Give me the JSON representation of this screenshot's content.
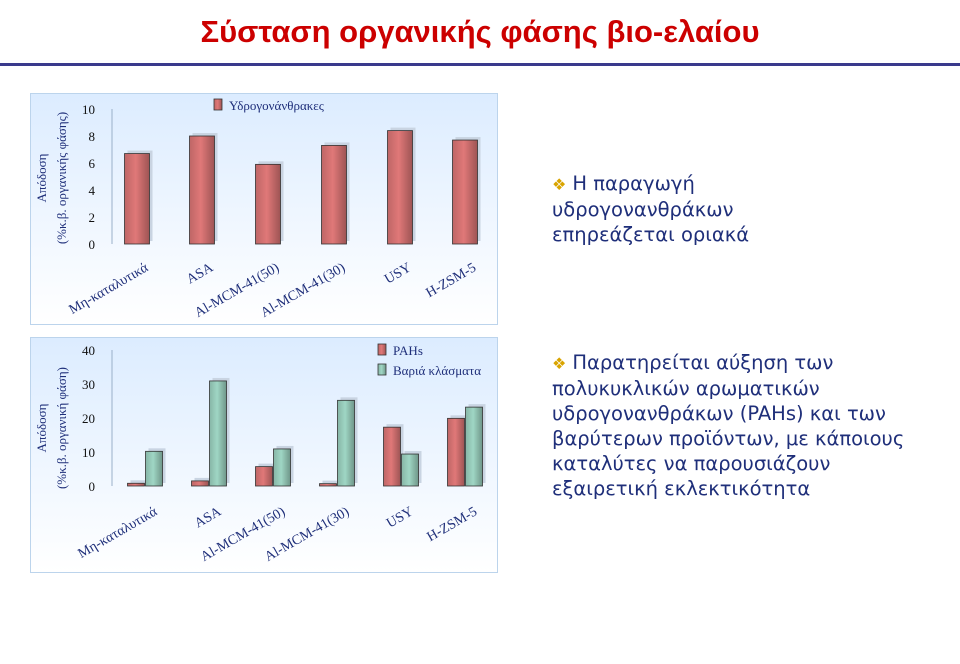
{
  "title": "Σύσταση οργανικής φάσης βιο-ελαίου",
  "bullets": [
    "Η παραγωγή υδρογονανθράκων επηρεάζεται οριακά",
    "Παρατηρείται αύξηση των πολυκυκλικών αρωματικών υδρογονανθράκων (PAHs) και των βαρύτερων προϊόντων, με κάποιους καταλύτες να παρουσιάζουν εξαιρετική εκλεκτικότητα"
  ],
  "chart_data": [
    {
      "type": "bar",
      "categories": [
        "Μη-καταλυτικά",
        "ASA",
        "Al-MCM-41(50)",
        "Al-MCM-41(30)",
        "USY",
        "H-ZSM-5"
      ],
      "series": [
        {
          "name": "Υδρογονάνθρακες",
          "values": [
            6.7,
            8.0,
            5.9,
            7.3,
            8.4,
            7.7
          ],
          "color": "#e07878"
        }
      ],
      "ylabel": [
        "Απόδοση",
        "(%κ.β. οργανικής φάσης)"
      ],
      "yticks": [
        "0",
        "2",
        "4",
        "6",
        "8",
        "10"
      ],
      "ylim": [
        0,
        10
      ],
      "legend_position": "top",
      "grid": false
    },
    {
      "type": "bar",
      "categories": [
        "Μη-καταλυτικά",
        "ASA",
        "Al-MCM-41(50)",
        "Al-MCM-41(30)",
        "USY",
        "H-ZSM-5"
      ],
      "series": [
        {
          "name": "PAHs",
          "values": [
            0.8,
            1.5,
            5.7,
            0.7,
            17.3,
            19.9
          ],
          "color": "#e07878"
        },
        {
          "name": "Βαριά κλάσματα",
          "values": [
            10.2,
            30.9,
            10.9,
            25.2,
            9.4,
            23.2
          ],
          "color": "#9fd6c4"
        }
      ],
      "ylabel": [
        "Απόδοση",
        "(%κ.β. οργανική φάση)"
      ],
      "yticks": [
        "0",
        "10",
        "20",
        "30",
        "40"
      ],
      "ylim": [
        0,
        40
      ],
      "legend_position": "top-right",
      "grid": false
    }
  ]
}
